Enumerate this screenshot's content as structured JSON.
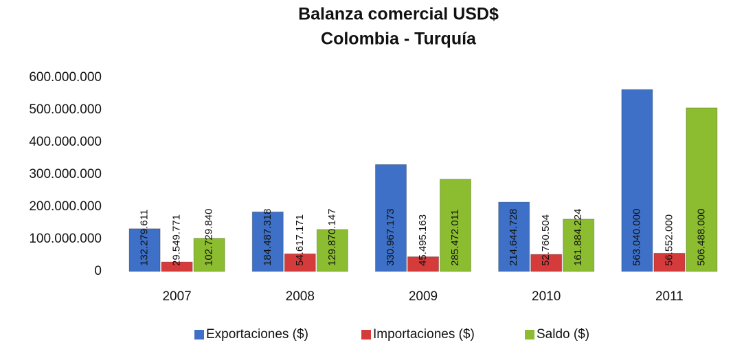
{
  "chart_data": {
    "type": "bar",
    "title": "Balanza comercial USD$",
    "subtitle": "Colombia - Turquía",
    "categories": [
      "2007",
      "2008",
      "2009",
      "2010",
      "2011"
    ],
    "series": [
      {
        "name": "Exportaciones ($)",
        "color": "#3d70c6",
        "values": [
          132279611,
          184487318,
          330967173,
          214644728,
          563040000
        ],
        "value_labels": [
          "132.279.611",
          "184.487.318",
          "330.967.173",
          "214.644.728",
          "563.040.000"
        ]
      },
      {
        "name": "Importaciones ($)",
        "color": "#d63b3b",
        "values": [
          29549771,
          54617171,
          45495163,
          52760504,
          56552000
        ],
        "value_labels": [
          "29.549.771",
          "54.617.171",
          "45.495.163",
          "52.760.504",
          "56.552.000"
        ]
      },
      {
        "name": "Saldo ($)",
        "color": "#8cbc2f",
        "values": [
          102729840,
          129870147,
          285472011,
          161884224,
          506488000
        ],
        "value_labels": [
          "102.729.840",
          "129.870.147",
          "285.472.011",
          "161.884.224",
          "506.488.000"
        ]
      }
    ],
    "ylim": [
      0,
      600000000
    ],
    "yticks": [
      0,
      {
        "value": 100000000,
        "label": "100.000.000"
      },
      {
        "value": 200000000,
        "label": "200.000.000"
      },
      {
        "value": 300000000,
        "label": "300.000.000"
      },
      {
        "value": 400000000,
        "label": "400.000.000"
      },
      {
        "value": 500000000,
        "label": "500.000.000"
      },
      {
        "value": 600000000,
        "label": "600.000.000"
      }
    ],
    "grid": false
  }
}
